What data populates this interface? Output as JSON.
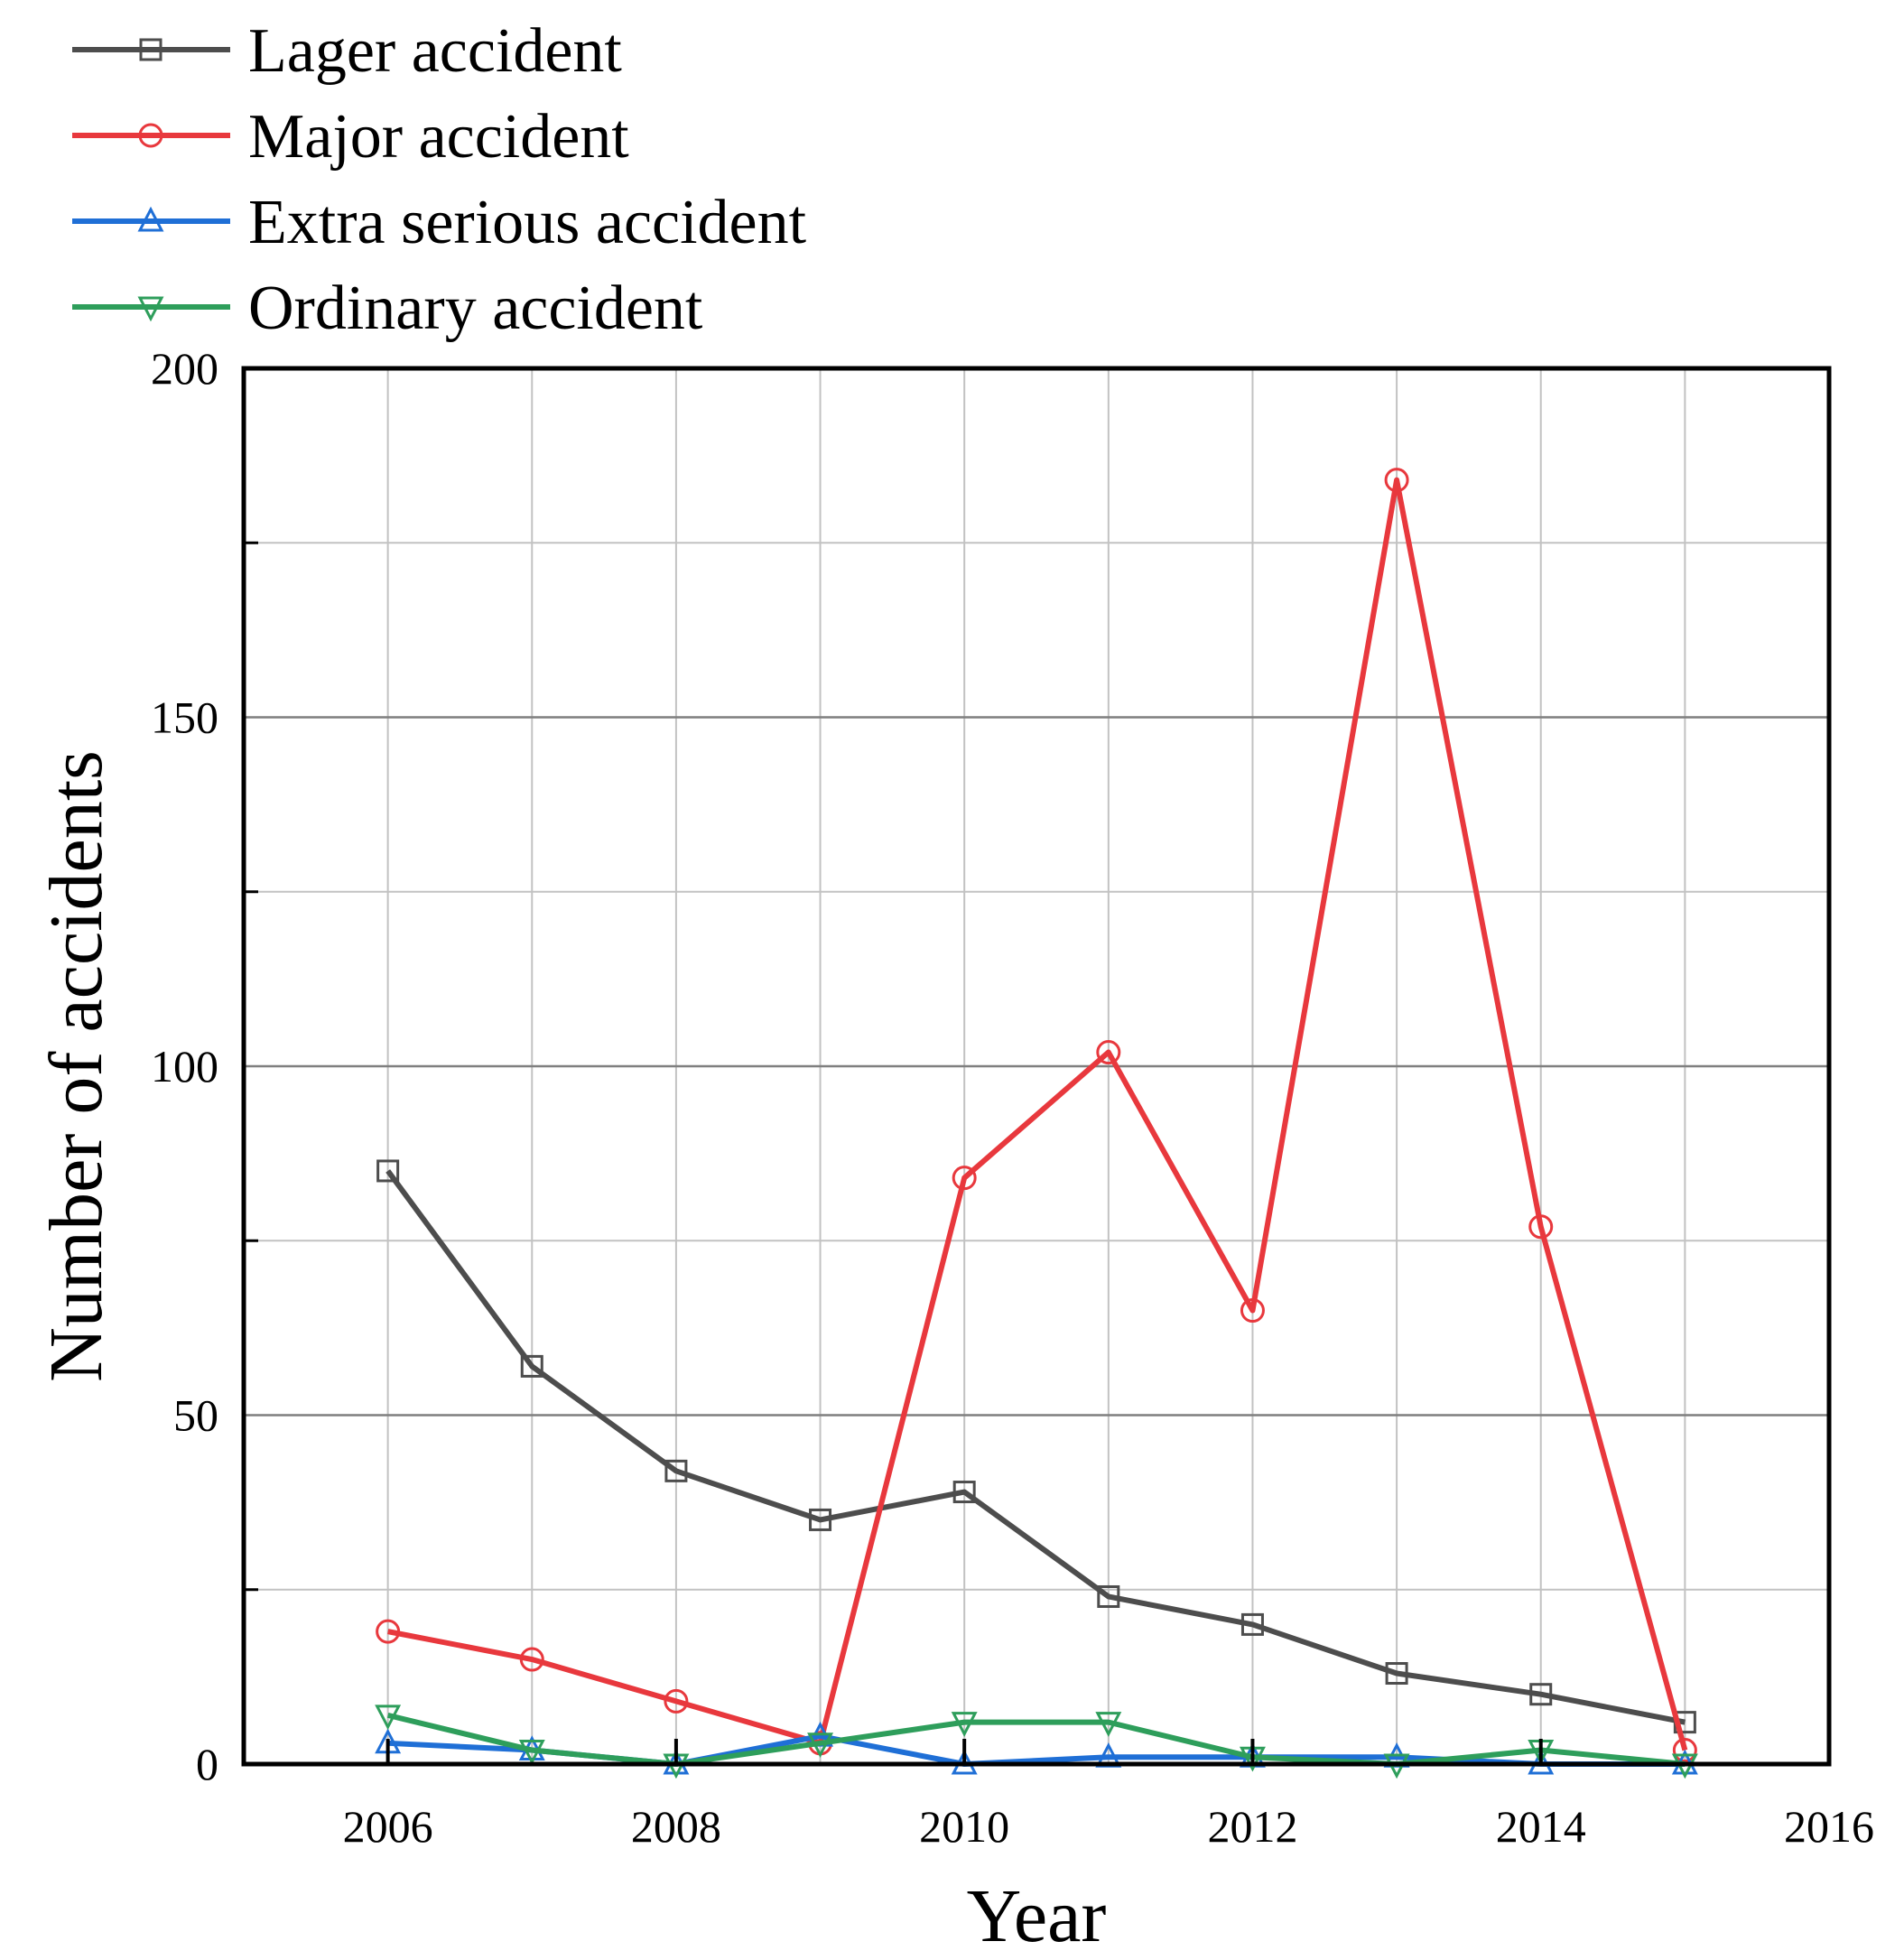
{
  "chart_data": {
    "type": "line",
    "title": "",
    "xlabel": "Year",
    "ylabel": "Number of accidents",
    "xlim": [
      2005,
      2016
    ],
    "ylim": [
      0,
      200
    ],
    "x_ticks": [
      "2006",
      "2008",
      "2010",
      "2012",
      "2014",
      "2016"
    ],
    "y_ticks": [
      "0",
      "50",
      "100",
      "150",
      "200"
    ],
    "grid": true,
    "legend_position": "top-left (above plot)",
    "x": [
      2006,
      2007,
      2008,
      2009,
      2010,
      2011,
      2012,
      2013,
      2014,
      2015
    ],
    "series": [
      {
        "name": "Lager accident",
        "color": "#4d4d4d",
        "marker": "square",
        "values": [
          85,
          57,
          42,
          35,
          39,
          24,
          20,
          13,
          10,
          6
        ]
      },
      {
        "name": "Major accident",
        "color": "#e8383d",
        "marker": "circle",
        "values": [
          19,
          15,
          9,
          3,
          84,
          102,
          65,
          184,
          77,
          2
        ]
      },
      {
        "name": "Extra serious accident",
        "color": "#1f6fd6",
        "marker": "triangle-up",
        "values": [
          3,
          2,
          0,
          4,
          0,
          1,
          1,
          1,
          0,
          0
        ]
      },
      {
        "name": "Ordinary accident",
        "color": "#2e9e5b",
        "marker": "triangle-down",
        "values": [
          7,
          2,
          0,
          3,
          6,
          6,
          1,
          0,
          2,
          0
        ]
      }
    ]
  }
}
